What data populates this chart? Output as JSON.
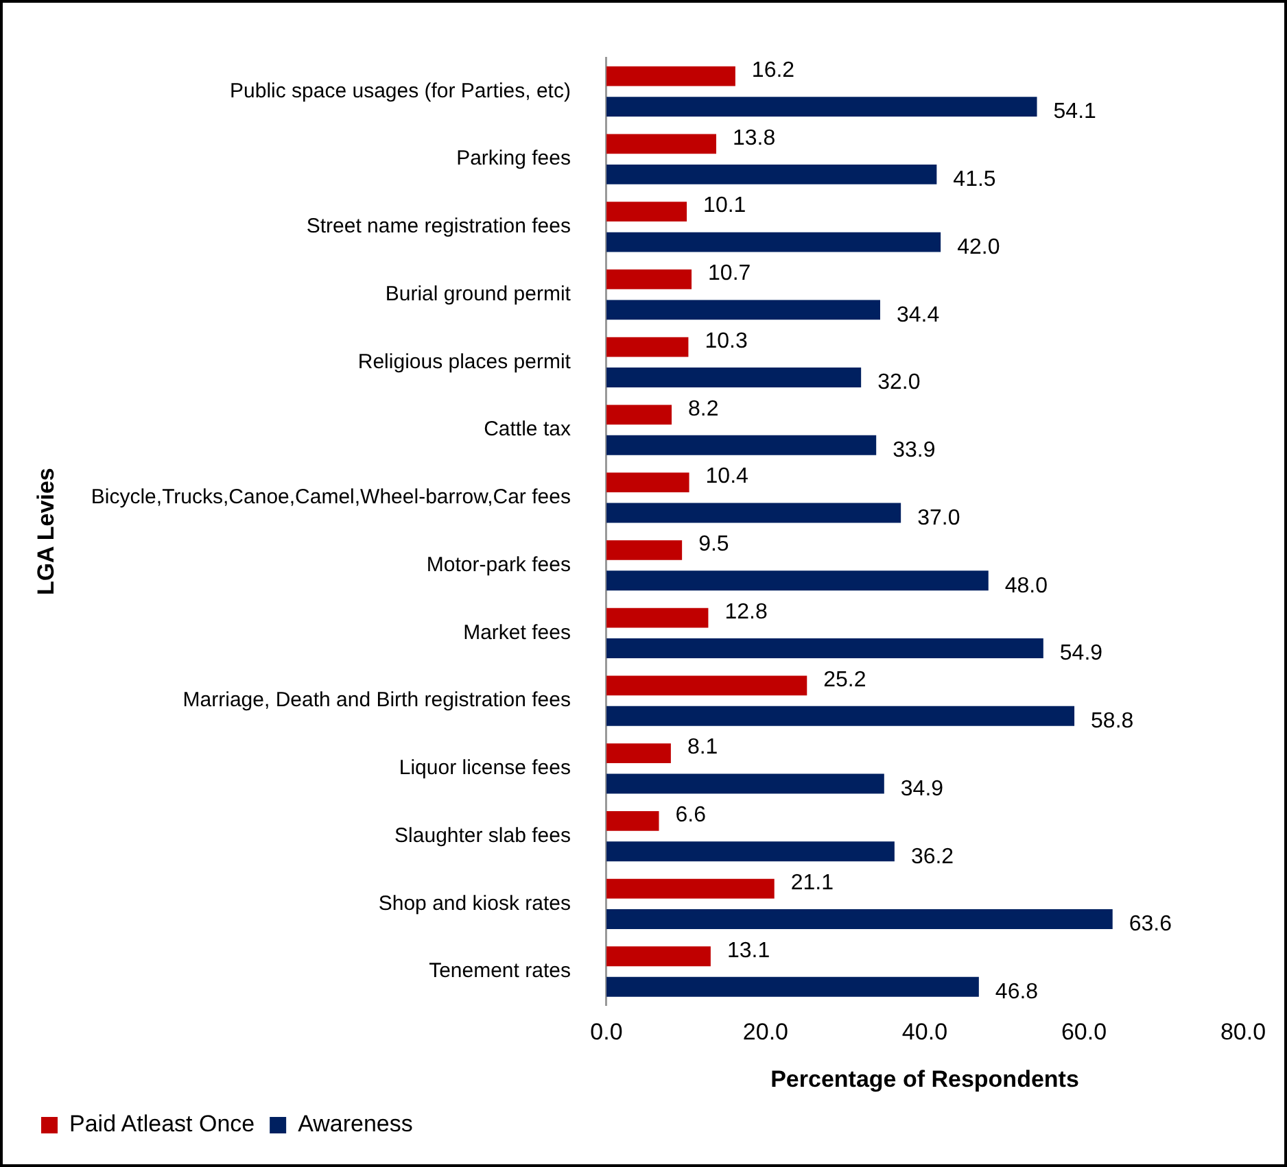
{
  "chart_data": {
    "type": "bar",
    "orientation": "horizontal",
    "categories": [
      "Public space usages (for Parties, etc)",
      "Parking fees",
      "Street name registration fees",
      "Burial ground permit",
      "Religious places permit",
      "Cattle tax",
      "Bicycle,Trucks,Canoe,Camel,Wheel-barrow,Car fees",
      "Motor-park fees",
      "Market fees",
      "Marriage, Death and Birth registration fees",
      "Liquor license fees",
      "Slaughter slab fees",
      "Shop and kiosk rates",
      "Tenement rates"
    ],
    "series": [
      {
        "name": "Paid Atleast Once",
        "color": "#c00000",
        "values": [
          16.2,
          13.8,
          10.1,
          10.7,
          10.3,
          8.2,
          10.4,
          9.5,
          12.8,
          25.2,
          8.1,
          6.6,
          21.1,
          13.1
        ],
        "value_labels": [
          "16.2",
          "13.8",
          "10.1",
          "10.7",
          "10.3",
          "8.2",
          "10.4",
          "9.5",
          "12.8",
          "25.2",
          "8.1",
          "6.6",
          "21.1",
          "13.1"
        ]
      },
      {
        "name": "Awareness",
        "color": "#002060",
        "values": [
          54.1,
          41.5,
          42.0,
          34.4,
          32.0,
          33.9,
          37.0,
          48.0,
          54.9,
          58.8,
          34.9,
          36.2,
          63.6,
          46.8
        ],
        "value_labels": [
          "54.1",
          "41.5",
          "42.0",
          "34.4",
          "32.0",
          "33.9",
          "37.0",
          "48.0",
          "54.9",
          "58.8",
          "34.9",
          "36.2",
          "63.6",
          "46.8"
        ]
      }
    ],
    "xlim": [
      0,
      80
    ],
    "xticks": [
      {
        "value": 0,
        "label": "0.0"
      },
      {
        "value": 20,
        "label": "20.0"
      },
      {
        "value": 40,
        "label": "40.0"
      },
      {
        "value": 60,
        "label": "60.0"
      },
      {
        "value": 80,
        "label": "80.0"
      }
    ],
    "xlabel": "Percentage of Respondents",
    "ylabel": "LGA Levies",
    "grid": false,
    "legend": "bottom left"
  }
}
